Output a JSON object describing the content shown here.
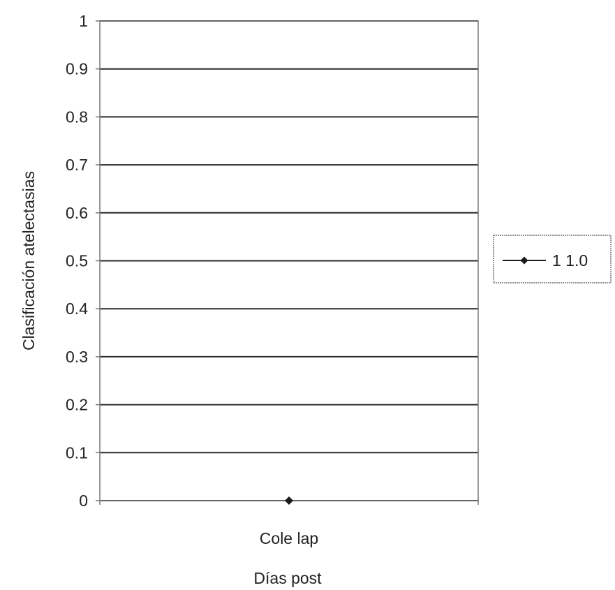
{
  "chart_data": {
    "type": "line",
    "categories": [
      "Cole lap"
    ],
    "series": [
      {
        "name": "1 1.0",
        "values": [
          0
        ]
      }
    ],
    "xlabel": "Días post",
    "ylabel": "Clasificación atelectasias",
    "ylim": [
      0,
      1
    ],
    "yticks": [
      "0",
      "0.1",
      "0.2",
      "0.3",
      "0.4",
      "0.5",
      "0.6",
      "0.7",
      "0.8",
      "0.9",
      "1"
    ],
    "grid": true,
    "legend": "right",
    "colors": {
      "series": "#1a1a1a",
      "grid": "#2a2a2a",
      "frame": "#777777",
      "text": "#222222"
    }
  }
}
